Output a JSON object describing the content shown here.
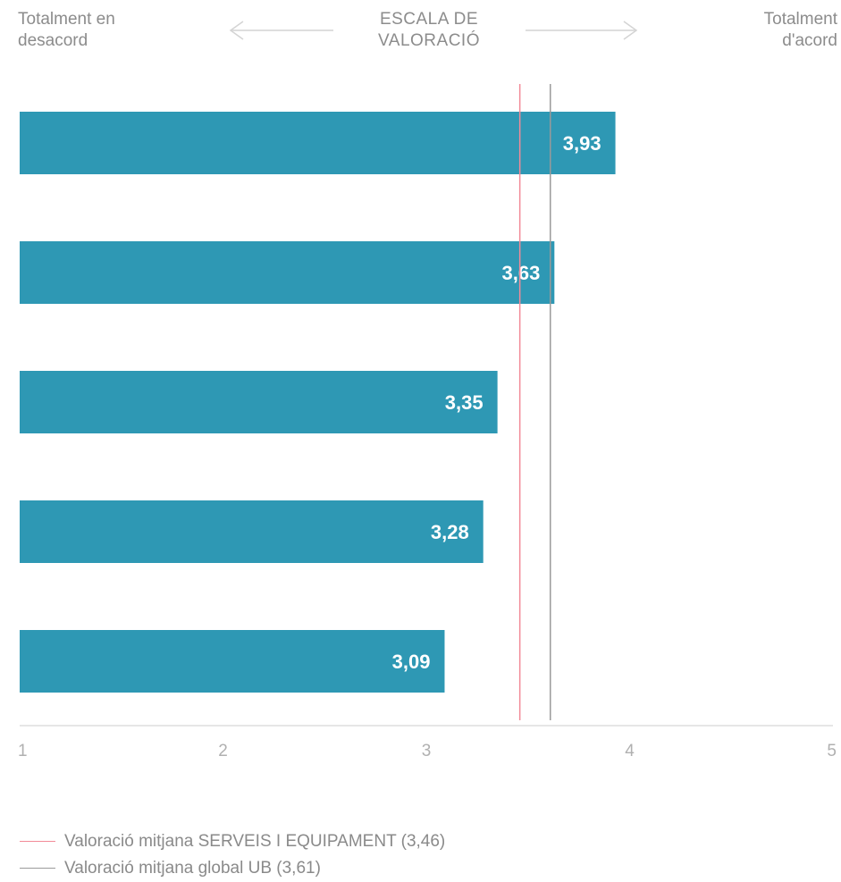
{
  "header": {
    "left": [
      "Totalment en",
      "desacord"
    ],
    "center": [
      "ESCALA DE",
      "VALORACIÓ"
    ],
    "right": [
      "Totalment",
      "d'acord"
    ]
  },
  "chart_data": {
    "type": "bar",
    "orientation": "horizontal",
    "values": [
      3.93,
      3.63,
      3.35,
      3.28,
      3.09
    ],
    "value_labels": [
      "3,93",
      "3,63",
      "3,35",
      "3,28",
      "3,09"
    ],
    "xlim": [
      1,
      5
    ],
    "xticks": [
      "1",
      "2",
      "3",
      "4",
      "5"
    ],
    "bar_color": "#2e98b4",
    "reference_lines": [
      {
        "name": "Valoració mitjana SERVEIS I EQUIPAMENT (3,46)",
        "value": 3.46,
        "color": "#f28b98"
      },
      {
        "name": "Valoració mitjana global UB (3,61)",
        "value": 3.61,
        "color": "#9a9a9a"
      }
    ],
    "grid": false,
    "legend_position": "bottom-left"
  },
  "legend": [
    {
      "label": "Valoració mitjana SERVEIS I EQUIPAMENT (3,46)",
      "color": "#f28b98"
    },
    {
      "label": "Valoració mitjana global UB (3,61)",
      "color": "#9a9a9a"
    }
  ]
}
